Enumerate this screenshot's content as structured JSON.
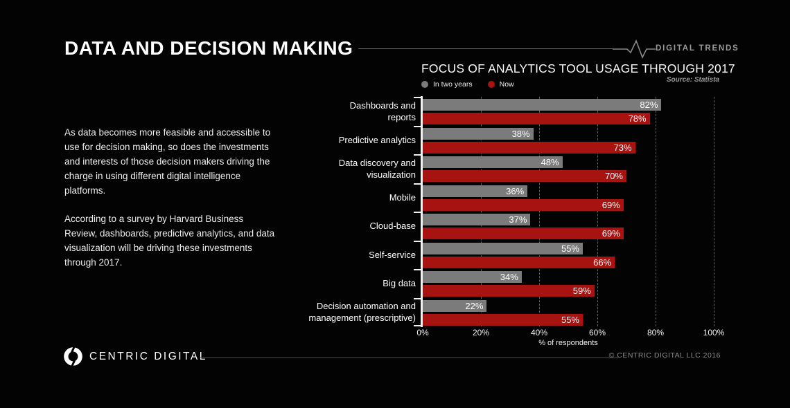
{
  "colors": {
    "background": "#030303",
    "bar_gray": "#7b7b7b",
    "bar_red": "#a61310",
    "grid": "#5f5f5f",
    "muted_text": "#9a9a9a"
  },
  "header": {
    "title": "DATA AND DECISION MAKING",
    "brand": "DIGITAL TRENDS"
  },
  "intro": {
    "paragraph1": "As data becomes more feasible and accessible to use for decision making, so does the investments and interests of those decision makers driving the charge in using different digital intelligence platforms.",
    "paragraph2": "According to a survey by Harvard Business Review, dashboards, predictive analytics, and data visualization will be driving these investments through 2017."
  },
  "chart_data": {
    "type": "bar",
    "orientation": "horizontal",
    "title": "FOCUS OF ANALYTICS TOOL USAGE THROUGH 2017",
    "source": "Source: Statista",
    "categories": [
      "Dashboards and reports",
      "Predictive analytics",
      "Data discovery and visualization",
      "Mobile",
      "Cloud-base",
      "Self-service",
      "Big data",
      "Decision automation and management (prescriptive)"
    ],
    "category_lines": [
      [
        "Dashboards and",
        "reports"
      ],
      [
        "Predictive analytics"
      ],
      [
        "Data discovery and",
        "visualization"
      ],
      [
        "Mobile"
      ],
      [
        "Cloud-base"
      ],
      [
        "Self-service"
      ],
      [
        "Big data"
      ],
      [
        "Decision automation and",
        "management (prescriptive)"
      ]
    ],
    "series": [
      {
        "name": "In two years",
        "color": "#7b7b7b",
        "values": [
          82,
          38,
          48,
          36,
          37,
          55,
          34,
          22
        ]
      },
      {
        "name": "Now",
        "color": "#a61310",
        "values": [
          78,
          73,
          70,
          69,
          69,
          66,
          59,
          55
        ]
      }
    ],
    "value_suffix": "%",
    "xlabel": "% of respondents",
    "xlim": [
      0,
      100
    ],
    "xticks": [
      {
        "value": 0,
        "label": "0%"
      },
      {
        "value": 20,
        "label": "20%"
      },
      {
        "value": 40,
        "label": "40%"
      },
      {
        "value": 60,
        "label": "60%"
      },
      {
        "value": 80,
        "label": "80%"
      },
      {
        "value": 100,
        "label": "100%"
      }
    ],
    "grid": true,
    "legend_position": "top-left"
  },
  "footer": {
    "logo_text": "CENTRIC DIGITAL",
    "copyright": "© CENTRIC DIGITAL LLC 2016"
  }
}
